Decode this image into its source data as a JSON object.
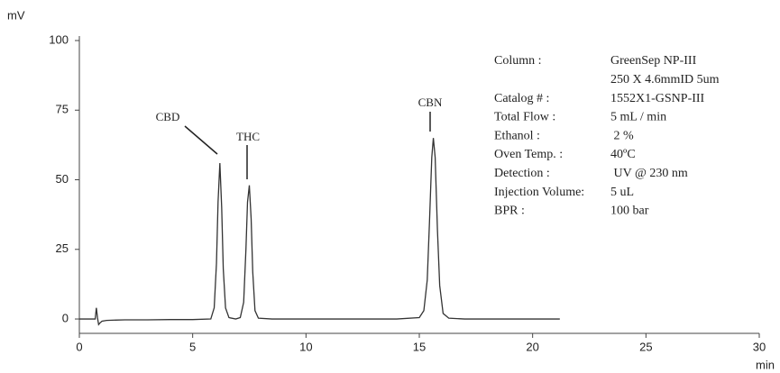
{
  "chart_data": {
    "type": "line",
    "y_label": "mV",
    "x_label": "min",
    "x": [
      0,
      0.7,
      0.75,
      0.8,
      0.85,
      0.9,
      1.0,
      1.2,
      2,
      3,
      4,
      5,
      5.8,
      5.95,
      6.05,
      6.12,
      6.2,
      6.28,
      6.35,
      6.45,
      6.6,
      6.9,
      7.1,
      7.25,
      7.35,
      7.42,
      7.5,
      7.58,
      7.65,
      7.75,
      7.9,
      8.5,
      10,
      12,
      14,
      15,
      15.2,
      15.35,
      15.45,
      15.55,
      15.62,
      15.7,
      15.8,
      15.9,
      16.05,
      16.3,
      17,
      19,
      21.2
    ],
    "values": [
      0,
      0,
      4,
      0.5,
      -2,
      -1.5,
      -0.8,
      -0.5,
      -0.3,
      -0.3,
      -0.2,
      -0.2,
      0,
      4,
      20,
      42,
      56,
      40,
      18,
      4,
      0.5,
      0,
      0.5,
      6,
      25,
      42,
      48,
      36,
      17,
      3,
      0.3,
      0,
      0,
      0,
      0,
      0.5,
      3,
      14,
      35,
      58,
      65,
      58,
      32,
      12,
      2,
      0.3,
      0,
      0,
      0
    ],
    "color": "#333333",
    "xlim": [
      0,
      30
    ],
    "xticks": [
      0,
      5,
      10,
      15,
      20,
      25,
      30
    ],
    "ylim": [
      -5,
      100
    ],
    "yticks": [
      0,
      25,
      50,
      75,
      100
    ],
    "annotations": [
      "CBD",
      "THC",
      "CBN"
    ],
    "info": [
      {
        "label": "Column :",
        "value": "GreenSep NP-III"
      },
      {
        "value": "250 X 4.6mmID 5um"
      },
      {
        "label": "Catalog # :",
        "value": "1552X1-GSNP-III"
      },
      {
        "label": "Total Flow :",
        "value": "5 mL / min"
      },
      {
        "label": "Ethanol :",
        "value": " 2 %"
      },
      {
        "label": "Oven Temp. :",
        "value": "40ºC"
      },
      {
        "label": "Detection :",
        "value": " UV @ 230 nm"
      },
      {
        "label": "Injection Volume:",
        "value": "5 uL"
      },
      {
        "label": "BPR :",
        "value": "100 bar"
      }
    ]
  }
}
